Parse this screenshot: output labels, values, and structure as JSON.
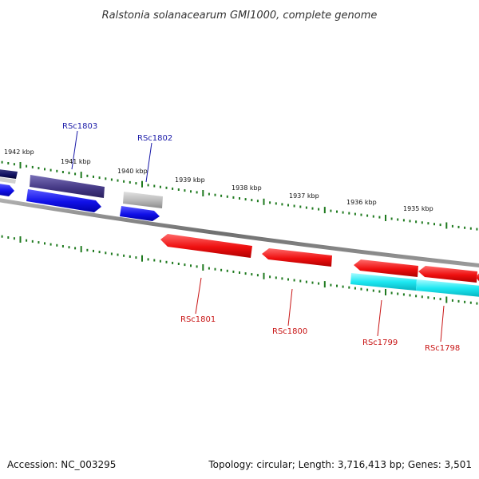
{
  "title": "Ralstonia solanacearum GMI1000, complete genome",
  "footer": {
    "accession": "Accession: NC_003295",
    "summary": "Topology: circular; Length: 3,716,413 bp; Genes: 3,501"
  },
  "colors": {
    "backbone": "#7a7a7a",
    "tick": "#1f7a1f",
    "forward_label": "#1a1aa8",
    "reverse_label": "#c81414",
    "blue_gene": "#1414e6",
    "navy_gene": "#4a3f8c",
    "grey_gene": "#b4b4b4",
    "red_gene": "#ee1111",
    "cyan_gene": "#14e6f0"
  },
  "ticks": [
    {
      "label": "1942 kbp"
    },
    {
      "label": "1941 kbp"
    },
    {
      "label": "1940 kbp"
    },
    {
      "label": "1939 kbp"
    },
    {
      "label": "1938 kbp"
    },
    {
      "label": "1937 kbp"
    },
    {
      "label": "1936 kbp"
    },
    {
      "label": "1935 kbp"
    }
  ],
  "gene_labels": [
    {
      "name": "RSc1803",
      "strand": "forward"
    },
    {
      "name": "RSc1802",
      "strand": "forward"
    },
    {
      "name": "RSc1801",
      "strand": "reverse"
    },
    {
      "name": "RSc1800",
      "strand": "reverse"
    },
    {
      "name": "RSc1799",
      "strand": "reverse"
    },
    {
      "name": "RSc1798",
      "strand": "reverse"
    }
  ]
}
